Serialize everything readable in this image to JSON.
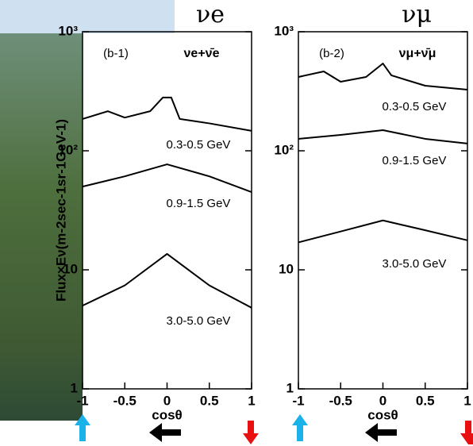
{
  "chart_data": [
    {
      "type": "line",
      "title": "νe",
      "panel_label": "(b-1)",
      "legend_text": "νe+ν̄e",
      "ylabel": "Flux×Eν(m-2sec-1sr-1GeV-1)",
      "xlabel": "cosθ",
      "log_y": true,
      "xlim": [
        -1,
        1
      ],
      "xticks": [
        -1,
        -0.5,
        0,
        0.5,
        1
      ],
      "ylim": [
        1,
        1000
      ],
      "yticks": [
        1,
        10,
        {
          "value": 100,
          "label": "10²"
        },
        {
          "value": 1000,
          "label": "10³"
        }
      ],
      "series": [
        {
          "name": "0.3-0.5 GeV",
          "color": "#000000",
          "x": [
            -1,
            -0.7,
            -0.5,
            -0.2,
            -0.05,
            0.05,
            0.15,
            0.5,
            1
          ],
          "values": [
            185,
            215,
            190,
            215,
            280,
            280,
            185,
            170,
            147
          ]
        },
        {
          "name": "0.9-1.5 GeV",
          "color": "#000000",
          "x": [
            -1,
            -0.5,
            0,
            0.5,
            1
          ],
          "values": [
            50,
            61,
            77,
            61,
            45
          ]
        },
        {
          "name": "3.0-5.0 GeV",
          "color": "#000000",
          "x": [
            -1,
            -0.5,
            0,
            0.5,
            1
          ],
          "values": [
            5,
            7.4,
            13.6,
            7.4,
            4.8
          ]
        }
      ]
    },
    {
      "type": "line",
      "title": "νμ",
      "panel_label": "(b-2)",
      "legend_text": "νμ+ν̄μ",
      "xlabel": "cosθ",
      "log_y": true,
      "xlim": [
        -1,
        1
      ],
      "xticks": [
        -1,
        -0.5,
        0,
        0.5,
        1
      ],
      "ylim": [
        1,
        1000
      ],
      "yticks": [
        1,
        10,
        {
          "value": 100,
          "label": "10²"
        },
        {
          "value": 1000,
          "label": "10³"
        }
      ],
      "series": [
        {
          "name": "0.3-0.5 GeV",
          "color": "#000000",
          "x": [
            -1,
            -0.7,
            -0.5,
            -0.2,
            0,
            0.1,
            0.5,
            1
          ],
          "values": [
            417,
            464,
            380,
            417,
            541,
            430,
            352,
            326
          ]
        },
        {
          "name": "0.9-1.5 GeV",
          "color": "#000000",
          "x": [
            -1,
            -0.5,
            0,
            0.5,
            1
          ],
          "values": [
            126,
            136,
            149,
            126,
            115
          ]
        },
        {
          "name": "3.0-5.0 GeV",
          "color": "#000000",
          "x": [
            -1,
            -0.5,
            0,
            0.5,
            1
          ],
          "values": [
            17,
            21,
            26,
            21.5,
            17.7
          ]
        }
      ]
    }
  ]
}
